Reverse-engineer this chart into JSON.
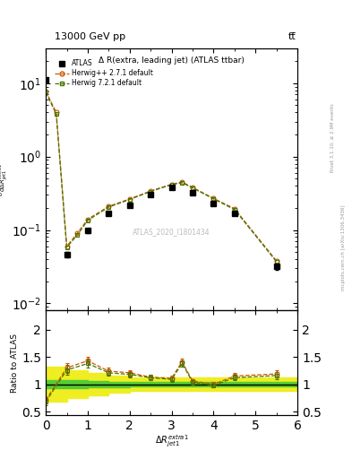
{
  "title_top": "13000 GeV pp",
  "title_top_right": "tt̅",
  "plot_title": "Δ R(extra, leading jet) (ATLAS ttbar)",
  "watermark": "ATLAS_2020_I1801434",
  "ylabel_main": "$\\frac{1}{\\sigma}\\frac{d\\sigma^{td}}{d\\Delta R_{jet1}^{extra1}}$",
  "ylabel_ratio": "Ratio to ATLAS",
  "xlabel": "$\\Delta R_{jet1}^{extra1}$",
  "right_label_top": "Rivet 3.1.10, ≥ 2.9M events",
  "right_label_bot": "mcplots.cern.ch [arXiv:1306.3436]",
  "xlim": [
    0,
    6
  ],
  "ylim_main": [
    0.008,
    30
  ],
  "ylim_ratio": [
    0.43,
    2.35
  ],
  "atlas_x": [
    0.0,
    0.5,
    1.0,
    1.5,
    2.0,
    2.5,
    3.0,
    3.5,
    4.0,
    4.5,
    5.5
  ],
  "atlas_y": [
    11.0,
    0.046,
    0.098,
    0.17,
    0.22,
    0.3,
    0.38,
    0.32,
    0.23,
    0.17,
    0.032
  ],
  "atlas_yerr": [
    0.4,
    0.004,
    0.007,
    0.01,
    0.01,
    0.012,
    0.014,
    0.012,
    0.01,
    0.009,
    0.003
  ],
  "herwig1_x": [
    0.0,
    0.25,
    0.5,
    0.75,
    1.0,
    1.5,
    2.0,
    2.5,
    3.0,
    3.25,
    3.5,
    4.0,
    4.5,
    5.5
  ],
  "herwig1_y": [
    7.8,
    4.0,
    0.06,
    0.09,
    0.14,
    0.21,
    0.265,
    0.34,
    0.42,
    0.45,
    0.38,
    0.27,
    0.195,
    0.038
  ],
  "herwig2_x": [
    0.0,
    0.25,
    0.5,
    0.75,
    1.0,
    1.5,
    2.0,
    2.5,
    3.0,
    3.25,
    3.5,
    4.0,
    4.5,
    5.5
  ],
  "herwig2_y": [
    7.5,
    3.8,
    0.058,
    0.085,
    0.135,
    0.205,
    0.26,
    0.335,
    0.415,
    0.44,
    0.375,
    0.265,
    0.19,
    0.037
  ],
  "ratio_herwig1_x": [
    0.0,
    0.5,
    1.0,
    1.5,
    2.0,
    2.5,
    3.0,
    3.25,
    3.5,
    4.0,
    4.5,
    5.5
  ],
  "ratio_herwig1": [
    0.71,
    1.3,
    1.43,
    1.24,
    1.21,
    1.13,
    1.11,
    1.41,
    1.06,
    1.0,
    1.15,
    1.19
  ],
  "ratio_herwig1_yerr": [
    0.06,
    0.09,
    0.08,
    0.06,
    0.05,
    0.05,
    0.04,
    0.06,
    0.04,
    0.04,
    0.05,
    0.07
  ],
  "ratio_herwig2_x": [
    0.0,
    0.5,
    1.0,
    1.5,
    2.0,
    2.5,
    3.0,
    3.25,
    3.5,
    4.0,
    4.5,
    5.5
  ],
  "ratio_herwig2": [
    0.68,
    1.26,
    1.38,
    1.21,
    1.18,
    1.12,
    1.09,
    1.38,
    1.04,
    0.98,
    1.12,
    1.16
  ],
  "ratio_herwig2_yerr": [
    0.06,
    0.09,
    0.08,
    0.06,
    0.05,
    0.05,
    0.04,
    0.06,
    0.04,
    0.04,
    0.05,
    0.07
  ],
  "band_edges": [
    0.0,
    0.5,
    1.0,
    1.5,
    2.0,
    2.5,
    3.0,
    3.5,
    4.0,
    4.5,
    5.0,
    5.5,
    6.0
  ],
  "band_green_lo": [
    0.93,
    0.93,
    0.94,
    0.95,
    0.96,
    0.96,
    0.96,
    0.96,
    0.96,
    0.96,
    0.96,
    0.96,
    0.96
  ],
  "band_green_hi": [
    1.07,
    1.07,
    1.06,
    1.05,
    1.04,
    1.04,
    1.04,
    1.04,
    1.04,
    1.04,
    1.04,
    1.04,
    1.04
  ],
  "band_yellow_lo": [
    0.68,
    0.74,
    0.8,
    0.85,
    0.88,
    0.88,
    0.88,
    0.88,
    0.88,
    0.88,
    0.88,
    0.88,
    0.88
  ],
  "band_yellow_hi": [
    1.32,
    1.26,
    1.2,
    1.15,
    1.12,
    1.12,
    1.12,
    1.12,
    1.12,
    1.12,
    1.12,
    1.12,
    1.12
  ],
  "color_atlas": "#000000",
  "color_herwig1": "#cc5500",
  "color_herwig2": "#447700",
  "color_band_green": "#55cc33",
  "color_band_yellow": "#eeee22"
}
